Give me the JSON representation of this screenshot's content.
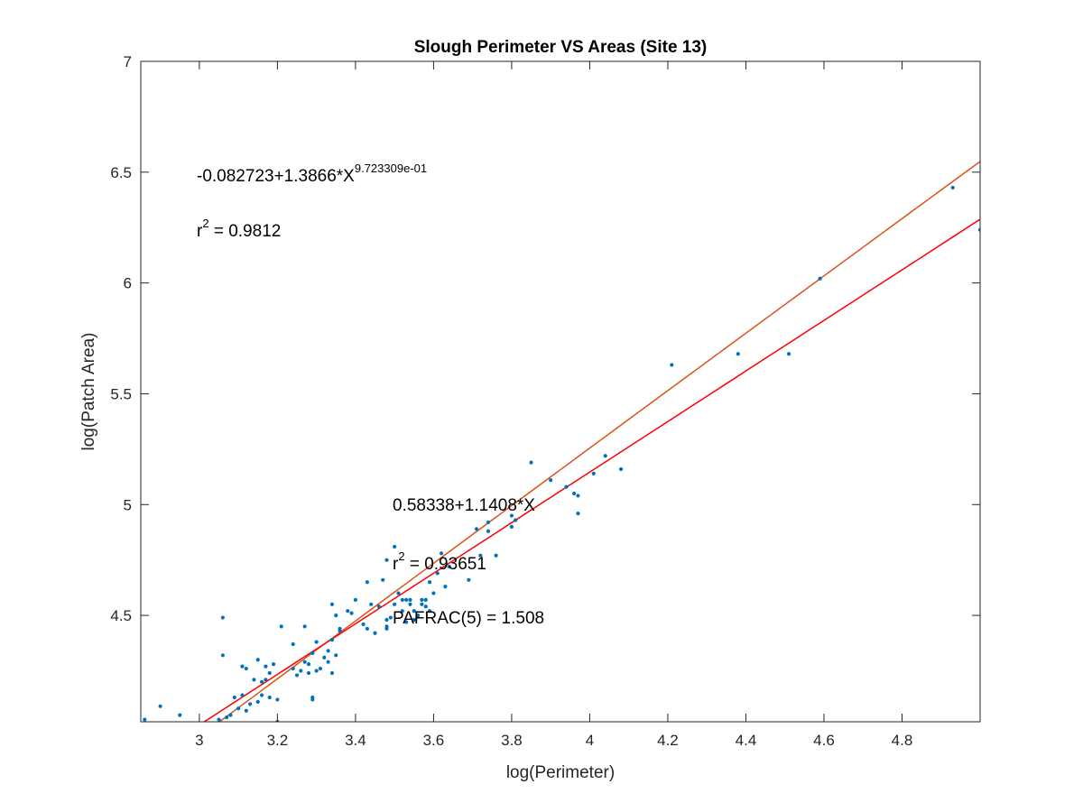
{
  "chart_data": {
    "type": "scatter",
    "title": "Slough Perimeter VS Areas (Site 13)",
    "xlabel": "log(Perimeter)",
    "ylabel": "log(Patch Area)",
    "xlim": [
      2.85,
      5.0
    ],
    "ylim": [
      4.02,
      7.0
    ],
    "x_ticks": [
      3,
      3.2,
      3.4,
      3.6,
      3.8,
      4,
      4.2,
      4.4,
      4.6,
      4.8
    ],
    "y_ticks": [
      4.5,
      5,
      5.5,
      6,
      6.5,
      7
    ],
    "x_tick_labels": [
      "3",
      "3.2",
      "3.4",
      "3.6",
      "3.8",
      "4",
      "4.2",
      "4.4",
      "4.6",
      "4.8"
    ],
    "y_tick_labels": [
      "4.5",
      "5",
      "5.5",
      "6",
      "6.5",
      "7"
    ],
    "grid": false,
    "colors": {
      "points": "#0072BD",
      "fit_power": "#D95319",
      "fit_linear": "#FF0000",
      "axes": "#262626"
    },
    "points": [
      [
        2.86,
        4.03
      ],
      [
        2.9,
        4.09
      ],
      [
        2.95,
        4.05
      ],
      [
        3.05,
        4.03
      ],
      [
        3.06,
        4.49
      ],
      [
        3.06,
        4.32
      ],
      [
        3.07,
        4.04
      ],
      [
        3.08,
        4.05
      ],
      [
        3.09,
        4.13
      ],
      [
        3.1,
        4.08
      ],
      [
        3.11,
        4.27
      ],
      [
        3.11,
        4.14
      ],
      [
        3.12,
        4.26
      ],
      [
        3.12,
        4.07
      ],
      [
        3.13,
        4.1
      ],
      [
        3.14,
        4.21
      ],
      [
        3.15,
        4.11
      ],
      [
        3.15,
        4.3
      ],
      [
        3.16,
        4.14
      ],
      [
        3.16,
        4.2
      ],
      [
        3.17,
        4.27
      ],
      [
        3.17,
        4.21
      ],
      [
        3.18,
        4.24
      ],
      [
        3.18,
        4.13
      ],
      [
        3.19,
        4.28
      ],
      [
        3.2,
        4.12
      ],
      [
        3.2,
        4.02
      ],
      [
        3.21,
        4.45
      ],
      [
        3.24,
        4.26
      ],
      [
        3.24,
        4.37
      ],
      [
        3.25,
        4.23
      ],
      [
        3.26,
        4.25
      ],
      [
        3.27,
        4.45
      ],
      [
        3.27,
        4.29
      ],
      [
        3.28,
        4.28
      ],
      [
        3.28,
        4.24
      ],
      [
        3.29,
        4.33
      ],
      [
        3.29,
        4.12
      ],
      [
        3.29,
        4.13
      ],
      [
        3.3,
        4.38
      ],
      [
        3.3,
        4.25
      ],
      [
        3.31,
        4.26
      ],
      [
        3.32,
        4.31
      ],
      [
        3.33,
        4.34
      ],
      [
        3.33,
        4.29
      ],
      [
        3.34,
        4.24
      ],
      [
        3.34,
        4.55
      ],
      [
        3.34,
        4.39
      ],
      [
        3.35,
        4.5
      ],
      [
        3.35,
        4.32
      ],
      [
        3.36,
        4.43
      ],
      [
        3.36,
        4.44
      ],
      [
        3.38,
        4.52
      ],
      [
        3.39,
        4.51
      ],
      [
        3.4,
        4.57
      ],
      [
        3.42,
        4.46
      ],
      [
        3.43,
        4.65
      ],
      [
        3.43,
        4.44
      ],
      [
        3.44,
        4.55
      ],
      [
        3.45,
        4.42
      ],
      [
        3.46,
        4.54
      ],
      [
        3.47,
        4.66
      ],
      [
        3.48,
        4.48
      ],
      [
        3.48,
        4.75
      ],
      [
        3.48,
        4.45
      ],
      [
        3.48,
        4.44
      ],
      [
        3.49,
        4.49
      ],
      [
        3.5,
        4.81
      ],
      [
        3.5,
        4.55
      ],
      [
        3.51,
        4.6
      ],
      [
        3.52,
        4.52
      ],
      [
        3.52,
        4.57
      ],
      [
        3.53,
        4.57
      ],
      [
        3.53,
        4.47
      ],
      [
        3.54,
        4.57
      ],
      [
        3.54,
        4.55
      ],
      [
        3.55,
        4.48
      ],
      [
        3.55,
        4.52
      ],
      [
        3.56,
        4.5
      ],
      [
        3.57,
        4.55
      ],
      [
        3.57,
        4.57
      ],
      [
        3.58,
        4.54
      ],
      [
        3.58,
        4.57
      ],
      [
        3.59,
        4.52
      ],
      [
        3.59,
        4.65
      ],
      [
        3.6,
        4.6
      ],
      [
        3.61,
        4.69
      ],
      [
        3.62,
        4.78
      ],
      [
        3.63,
        4.63
      ],
      [
        3.64,
        4.72
      ],
      [
        3.69,
        4.66
      ],
      [
        3.71,
        4.89
      ],
      [
        3.72,
        4.77
      ],
      [
        3.74,
        4.92
      ],
      [
        3.74,
        4.88
      ],
      [
        3.76,
        4.77
      ],
      [
        3.8,
        4.9
      ],
      [
        3.8,
        4.95
      ],
      [
        3.81,
        4.93
      ],
      [
        3.85,
        5.19
      ],
      [
        3.9,
        5.11
      ],
      [
        3.94,
        5.08
      ],
      [
        3.96,
        5.05
      ],
      [
        3.97,
        4.96
      ],
      [
        3.97,
        5.04
      ],
      [
        4.01,
        5.14
      ],
      [
        4.04,
        5.22
      ],
      [
        4.08,
        5.16
      ],
      [
        4.21,
        5.63
      ],
      [
        4.38,
        5.68
      ],
      [
        4.51,
        5.68
      ],
      [
        4.59,
        6.02
      ],
      [
        4.93,
        6.43
      ],
      [
        5.0,
        6.24
      ]
    ],
    "fits": [
      {
        "kind": "power",
        "a": -0.082723,
        "b": 1.3866,
        "c": 0.9723309
      },
      {
        "kind": "linear",
        "intercept": 0.58338,
        "slope": 1.1408
      }
    ],
    "annotations": {
      "fit1_main": "-0.082723+1.3866*X",
      "fit1_exponent": "9.723309e-01",
      "fit1_r2_prefix": "r",
      "fit1_r2_sup": "2",
      "fit1_r2_value": " = 0.9812",
      "fit2_main": "0.58338+1.1408*X",
      "fit2_r2_prefix": "r",
      "fit2_r2_sup": "2",
      "fit2_r2_value": " = 0.93651",
      "pafrac": "PAFRAC(5) = 1.508"
    }
  }
}
